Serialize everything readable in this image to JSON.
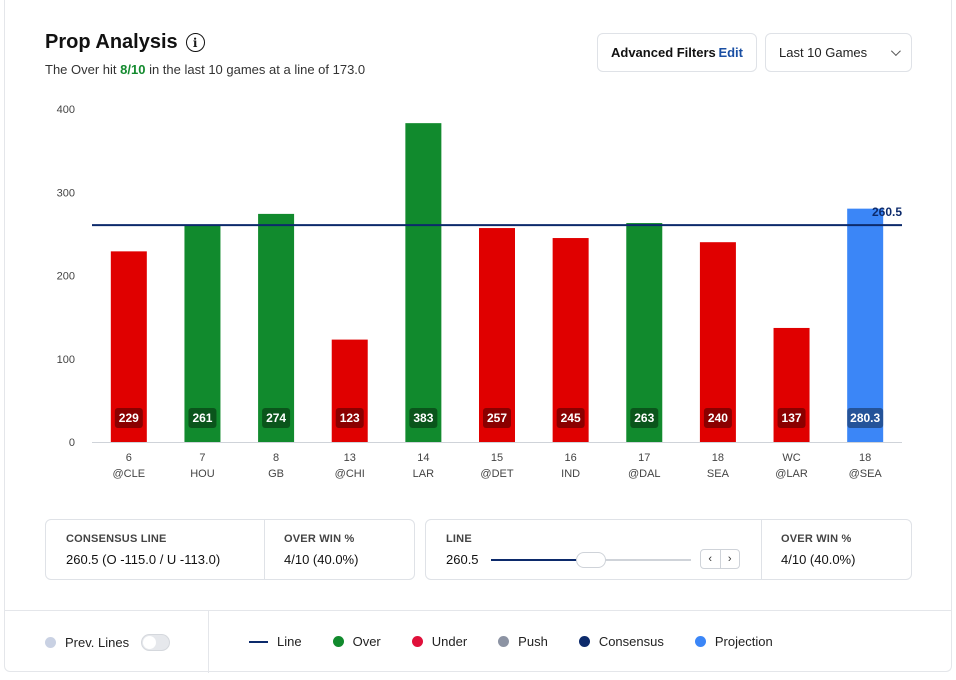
{
  "header": {
    "title": "Prop Analysis",
    "info_icon": "info-icon",
    "subtitle_prefix": "The Over hit ",
    "subtitle_highlight": "8/10",
    "subtitle_suffix": " in the last 10 games at a line of 173.0"
  },
  "filters": {
    "label": "Advanced Filters",
    "edit_label": "Edit"
  },
  "range_select": {
    "value": "Last 10 Games"
  },
  "colors": {
    "over": "#118a2d",
    "under": "#e00000",
    "projection": "#3b86f7",
    "line": "#0c2a6b",
    "push": "#8c93a3",
    "prev_lines": "#c9d1e3",
    "legend_under": "#e0103a"
  },
  "chart_data": {
    "type": "bar",
    "title": "Prop Analysis",
    "ylim": [
      0,
      400
    ],
    "yticks": [
      0,
      100,
      200,
      300,
      400
    ],
    "grid": false,
    "line_value": 260.5,
    "line_label": "260.5",
    "categories": [
      {
        "week": "6",
        "opp": "@CLE"
      },
      {
        "week": "7",
        "opp": "HOU"
      },
      {
        "week": "8",
        "opp": "GB"
      },
      {
        "week": "13",
        "opp": "@CHI"
      },
      {
        "week": "14",
        "opp": "LAR"
      },
      {
        "week": "15",
        "opp": "@DET"
      },
      {
        "week": "16",
        "opp": "IND"
      },
      {
        "week": "17",
        "opp": "@DAL"
      },
      {
        "week": "18",
        "opp": "SEA"
      },
      {
        "week": "WC",
        "opp": "@LAR"
      },
      {
        "week": "18",
        "opp": "@SEA"
      }
    ],
    "values": [
      229,
      261,
      274,
      123,
      383,
      257,
      245,
      263,
      240,
      137,
      280.3
    ],
    "labels": [
      "229",
      "261",
      "274",
      "123",
      "383",
      "257",
      "245",
      "263",
      "240",
      "137",
      "280.3"
    ],
    "result": [
      "under",
      "over",
      "over",
      "under",
      "over",
      "under",
      "under",
      "over",
      "under",
      "under",
      "projection"
    ]
  },
  "consensus": {
    "line_label": "CONSENSUS LINE",
    "line_value": "260.5 (O -115.0 / U -113.0)",
    "win_label": "OVER WIN %",
    "win_value": "4/10 (40.0%)"
  },
  "line_control": {
    "label": "LINE",
    "value": "260.5",
    "slider_fraction": 0.5,
    "prev_glyph": "‹",
    "next_glyph": "›",
    "win_label": "OVER WIN %",
    "win_value": "4/10 (40.0%)"
  },
  "legend": {
    "prev_lines": "Prev. Lines",
    "items": [
      {
        "key": "line",
        "label": "Line"
      },
      {
        "key": "over",
        "label": "Over"
      },
      {
        "key": "under",
        "label": "Under"
      },
      {
        "key": "push",
        "label": "Push"
      },
      {
        "key": "consensus",
        "label": "Consensus"
      },
      {
        "key": "projection",
        "label": "Projection"
      }
    ]
  }
}
